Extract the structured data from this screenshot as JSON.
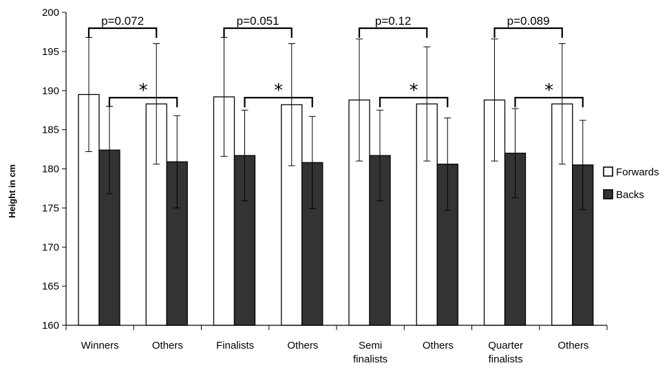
{
  "chart_data": {
    "type": "bar",
    "title": "",
    "xlabel": "",
    "ylabel": "Height in cm",
    "ylim": [
      160,
      200
    ],
    "yticks": [
      160,
      165,
      170,
      175,
      180,
      185,
      190,
      195,
      200
    ],
    "grid": false,
    "legend_position": "right",
    "categories": [
      [
        "Winners"
      ],
      [
        "Others"
      ],
      [
        "Finalists"
      ],
      [
        "Others"
      ],
      [
        "Semi",
        "finalists"
      ],
      [
        "Others"
      ],
      [
        "Quarter",
        "finalists"
      ],
      [
        "Others"
      ]
    ],
    "series": [
      {
        "name": "Forwards",
        "color": "#ffffff",
        "values": [
          189.5,
          188.3,
          189.2,
          188.2,
          188.8,
          188.3,
          188.8,
          188.3
        ],
        "errors": [
          7.3,
          7.7,
          7.6,
          7.8,
          7.8,
          7.3,
          7.8,
          7.7
        ]
      },
      {
        "name": "Backs",
        "color": "#333333",
        "values": [
          182.4,
          180.9,
          181.7,
          180.8,
          181.7,
          180.6,
          182.0,
          180.5
        ],
        "errors": [
          5.6,
          5.9,
          5.8,
          5.9,
          5.8,
          5.9,
          5.7,
          5.7
        ]
      }
    ],
    "annotations": [
      {
        "text": "p=0.072",
        "from_category": 0,
        "to_category": 1,
        "series": "Forwards"
      },
      {
        "text": "*",
        "from_category": 0,
        "to_category": 1,
        "series": "Backs"
      },
      {
        "text": "p=0.051",
        "from_category": 2,
        "to_category": 3,
        "series": "Forwards"
      },
      {
        "text": "*",
        "from_category": 2,
        "to_category": 3,
        "series": "Backs"
      },
      {
        "text": "p=0.12",
        "from_category": 4,
        "to_category": 5,
        "series": "Forwards"
      },
      {
        "text": "*",
        "from_category": 4,
        "to_category": 5,
        "series": "Backs"
      },
      {
        "text": "p=0.089",
        "from_category": 6,
        "to_category": 7,
        "series": "Forwards"
      },
      {
        "text": "*",
        "from_category": 6,
        "to_category": 7,
        "series": "Backs"
      }
    ]
  }
}
